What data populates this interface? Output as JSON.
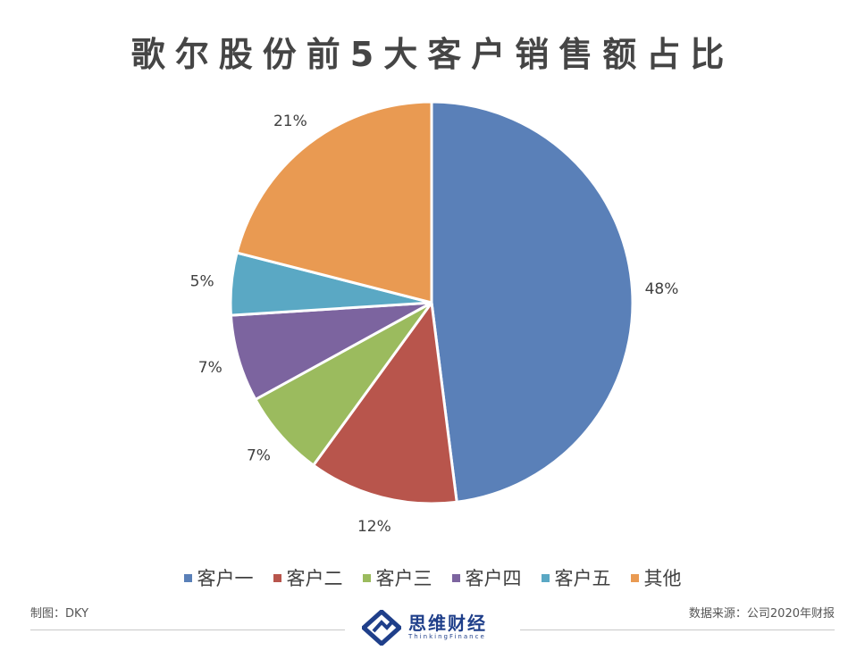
{
  "colors": {
    "customer1": "#5a80b8",
    "customer2": "#b8554c",
    "customer3": "#9bbb5e",
    "customer4": "#7c649f",
    "customer5": "#5aa8c4",
    "other": "#e99a52",
    "title": "#454545",
    "logo": "#1f3f8a"
  },
  "chart_data": {
    "type": "pie",
    "title": "歌尔股份前5大客户销售额占比",
    "categories": [
      "客户一",
      "客户二",
      "客户三",
      "客户四",
      "客户五",
      "其他"
    ],
    "values": [
      48,
      12,
      7,
      7,
      5,
      21
    ],
    "labels": [
      "48%",
      "12%",
      "7%",
      "7%",
      "5%",
      "21%"
    ],
    "legend_position": "bottom",
    "start": "12 o'clock",
    "direction": "clockwise"
  },
  "footer": {
    "author": "制图：DKY",
    "source": "数据来源：公司2020年财报",
    "logo_name": "思维财经",
    "logo_subtitle": "ThinkingFinance"
  }
}
